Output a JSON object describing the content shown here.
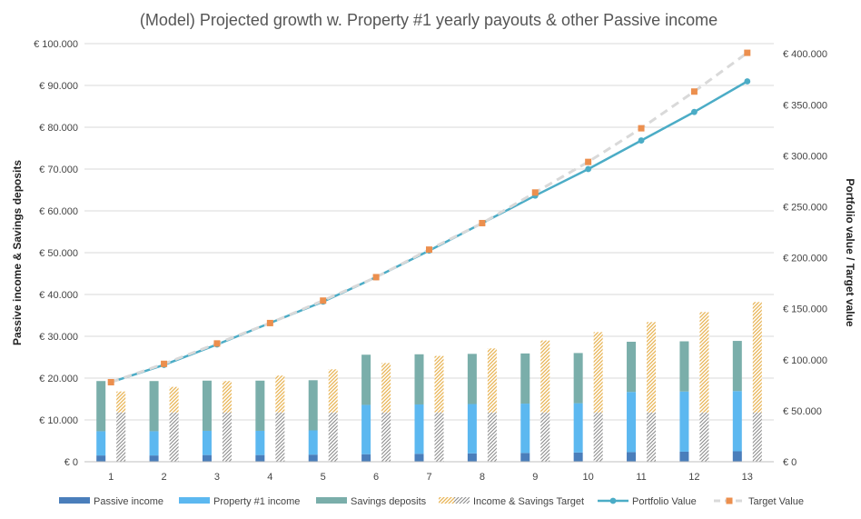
{
  "chart_data": {
    "type": "bar",
    "title": "(Model) Projected growth w. Property #1 yearly payouts & other Passive income",
    "xlabel": "",
    "ylabel": "Passive  income & Savings deposits",
    "y2label": "Portfolio value / Target value",
    "categories": [
      "1",
      "2",
      "3",
      "4",
      "5",
      "6",
      "7",
      "8",
      "9",
      "10",
      "11",
      "12",
      "13"
    ],
    "ylim": [
      0,
      100000
    ],
    "y2lim": [
      0,
      410000
    ],
    "y_ticks": [
      0,
      10000,
      20000,
      30000,
      40000,
      50000,
      60000,
      70000,
      80000,
      90000,
      100000
    ],
    "y_tick_labels": [
      "€ 0",
      "€ 10.000",
      "€ 20.000",
      "€ 30.000",
      "€ 40.000",
      "€ 50.000",
      "€ 60.000",
      "€ 70.000",
      "€ 80.000",
      "€ 90.000",
      "€ 100.000"
    ],
    "y2_ticks": [
      0,
      50000,
      100000,
      150000,
      200000,
      250000,
      300000,
      350000,
      400000
    ],
    "y2_tick_labels": [
      "€ 0",
      "€ 50.000",
      "€ 100.000",
      "€ 150.000",
      "€ 200.000",
      "€ 250.000",
      "€ 300.000",
      "€ 350.000",
      "€ 400.000"
    ],
    "grid": true,
    "legend_position": "bottom",
    "series": [
      {
        "name": "Passive income",
        "type": "bar-stacked",
        "axis": "left",
        "color": "#4a7ebb",
        "values": [
          1500,
          1500,
          1600,
          1600,
          1700,
          1800,
          1900,
          2000,
          2100,
          2200,
          2300,
          2400,
          2500
        ]
      },
      {
        "name": "Property #1 income",
        "type": "bar-stacked",
        "axis": "left",
        "color": "#5cb8f0",
        "values": [
          5800,
          5800,
          5800,
          5800,
          5800,
          11800,
          11800,
          11800,
          11800,
          11800,
          14400,
          14400,
          14400
        ]
      },
      {
        "name": "Savings deposits",
        "type": "bar-stacked",
        "axis": "left",
        "color": "#7aaeaa",
        "values": [
          12000,
          12000,
          12000,
          12000,
          12000,
          12000,
          12000,
          12000,
          12000,
          12000,
          12000,
          12000,
          12000
        ]
      },
      {
        "name": "Income & Savings Target",
        "type": "bar-stacked-split",
        "axis": "left",
        "color": "#e8b455",
        "base_color": "#8c8c8c",
        "base": [
          11800,
          11800,
          11800,
          11800,
          11800,
          11800,
          11800,
          11800,
          11800,
          11800,
          11800,
          11800,
          11800
        ],
        "values": [
          16800,
          17900,
          19300,
          20600,
          22100,
          23600,
          25300,
          27100,
          29000,
          31000,
          33400,
          35800,
          38200
        ]
      },
      {
        "name": "Portfolio Value",
        "type": "line",
        "axis": "right",
        "color": "#4bacc6",
        "values": [
          78000,
          95000,
          115000,
          136000,
          157000,
          181000,
          207000,
          234000,
          261000,
          287000,
          315000,
          343000,
          373000
        ]
      },
      {
        "name": "Target Value",
        "type": "line-dashed",
        "axis": "right",
        "color": "#d9d9d9",
        "marker_color": "#ec8f4e",
        "values": [
          78000,
          96000,
          116000,
          136000,
          158000,
          181000,
          208000,
          234000,
          264000,
          294000,
          327000,
          363000,
          401000
        ]
      }
    ]
  }
}
